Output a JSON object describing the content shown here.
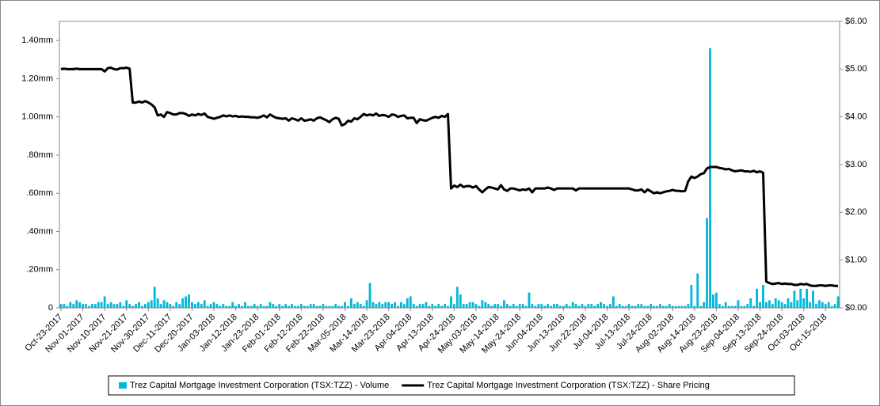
{
  "chart_data": {
    "type": "combo",
    "categories": [
      "Oct-23-2017",
      null,
      null,
      null,
      null,
      null,
      null,
      "Nov-01-2017",
      null,
      null,
      null,
      null,
      null,
      null,
      "Nov-10-2017",
      null,
      null,
      null,
      null,
      null,
      null,
      "Nov-21-2017",
      null,
      null,
      null,
      null,
      null,
      null,
      "Nov-30-2017",
      null,
      null,
      null,
      null,
      null,
      null,
      "Dec-11-2017",
      null,
      null,
      null,
      null,
      null,
      null,
      "Dec-20-2017",
      null,
      null,
      null,
      null,
      null,
      null,
      "Jan-03-2018",
      null,
      null,
      null,
      null,
      null,
      null,
      "Jan-12-2018",
      null,
      null,
      null,
      null,
      null,
      null,
      "Jan-23-2018",
      null,
      null,
      null,
      null,
      null,
      null,
      "Feb-01-2018",
      null,
      null,
      null,
      null,
      null,
      null,
      "Feb-12-2018",
      null,
      null,
      null,
      null,
      null,
      null,
      "Feb-22-2018",
      null,
      null,
      null,
      null,
      null,
      null,
      "Mar-05-2018",
      null,
      null,
      null,
      null,
      null,
      null,
      "Mar-14-2018",
      null,
      null,
      null,
      null,
      null,
      null,
      "Mar-23-2018",
      null,
      null,
      null,
      null,
      null,
      null,
      "Apr-04-2018",
      null,
      null,
      null,
      null,
      null,
      null,
      "Apr-13-2018",
      null,
      null,
      null,
      null,
      null,
      null,
      "Apr-24-2018",
      null,
      null,
      null,
      null,
      null,
      null,
      "May-03-2018",
      null,
      null,
      null,
      null,
      null,
      null,
      "May-14-2018",
      null,
      null,
      null,
      null,
      null,
      null,
      "May-24-2018",
      null,
      null,
      null,
      null,
      null,
      null,
      "Jun-04-2018",
      null,
      null,
      null,
      null,
      null,
      null,
      "Jun-13-2018",
      null,
      null,
      null,
      null,
      null,
      null,
      "Jun-22-2018",
      null,
      null,
      null,
      null,
      null,
      null,
      "Jul-04-2018",
      null,
      null,
      null,
      null,
      null,
      null,
      "Jul-13-2018",
      null,
      null,
      null,
      null,
      null,
      null,
      "Jul-24-2018",
      null,
      null,
      null,
      null,
      null,
      null,
      "Aug-02-2018",
      null,
      null,
      null,
      null,
      null,
      null,
      "Aug-14-2018",
      null,
      null,
      null,
      null,
      null,
      null,
      "Aug-23-2018",
      null,
      null,
      null,
      null,
      null,
      null,
      "Sep-04-2018",
      null,
      null,
      null,
      null,
      null,
      null,
      "Sep-13-2018",
      null,
      null,
      null,
      null,
      null,
      null,
      "Sep-24-2018",
      null,
      null,
      null,
      null,
      null,
      null,
      "Oct-03-2018",
      null,
      null,
      null,
      null,
      null,
      null,
      "Oct-15-2018",
      null,
      null,
      null,
      null
    ],
    "series": [
      {
        "name": "Trez Capital Mortgage Investment Corporation (TSX:TZZ) - Volume",
        "type": "bar",
        "color": "#00b8d9",
        "values": [
          0.02,
          0.02,
          0.01,
          0.03,
          0.02,
          0.04,
          0.03,
          0.02,
          0.02,
          0.01,
          0.02,
          0.02,
          0.03,
          0.03,
          0.06,
          0.02,
          0.03,
          0.02,
          0.02,
          0.03,
          0.01,
          0.04,
          0.02,
          0.01,
          0.02,
          0.03,
          0.01,
          0.02,
          0.03,
          0.04,
          0.11,
          0.05,
          0.02,
          0.04,
          0.03,
          0.02,
          0.01,
          0.03,
          0.02,
          0.05,
          0.06,
          0.07,
          0.03,
          0.02,
          0.03,
          0.02,
          0.04,
          0.01,
          0.02,
          0.03,
          0.02,
          0.01,
          0.02,
          0.01,
          0.01,
          0.03,
          0.01,
          0.02,
          0.01,
          0.03,
          0.01,
          0.01,
          0.02,
          0.01,
          0.02,
          0.01,
          0.01,
          0.03,
          0.02,
          0.01,
          0.02,
          0.01,
          0.02,
          0.01,
          0.02,
          0.01,
          0.01,
          0.02,
          0.01,
          0.01,
          0.02,
          0.02,
          0.01,
          0.01,
          0.02,
          0.01,
          0.01,
          0.01,
          0.02,
          0.01,
          0.01,
          0.03,
          0.01,
          0.05,
          0.02,
          0.03,
          0.02,
          0.01,
          0.04,
          0.13,
          0.03,
          0.02,
          0.03,
          0.02,
          0.03,
          0.03,
          0.02,
          0.03,
          0.01,
          0.03,
          0.02,
          0.05,
          0.06,
          0.02,
          0.01,
          0.02,
          0.02,
          0.03,
          0.01,
          0.02,
          0.01,
          0.02,
          0.01,
          0.02,
          0.01,
          0.06,
          0.02,
          0.11,
          0.07,
          0.02,
          0.02,
          0.03,
          0.03,
          0.02,
          0.01,
          0.04,
          0.03,
          0.02,
          0.01,
          0.02,
          0.02,
          0.01,
          0.04,
          0.02,
          0.01,
          0.02,
          0.01,
          0.02,
          0.02,
          0.01,
          0.08,
          0.02,
          0.01,
          0.02,
          0.02,
          0.01,
          0.02,
          0.01,
          0.02,
          0.02,
          0.01,
          0.01,
          0.02,
          0.01,
          0.03,
          0.02,
          0.01,
          0.02,
          0.01,
          0.02,
          0.02,
          0.01,
          0.02,
          0.03,
          0.02,
          0.01,
          0.02,
          0.06,
          0.01,
          0.02,
          0.01,
          0.01,
          0.02,
          0.01,
          0.01,
          0.02,
          0.02,
          0.01,
          0.01,
          0.02,
          0.01,
          0.01,
          0.02,
          0.01,
          0.01,
          0.02,
          0.01,
          0.01,
          0.01,
          0.01,
          0.01,
          0.02,
          0.12,
          0.01,
          0.18,
          0.01,
          0.03,
          0.47,
          1.36,
          0.07,
          0.08,
          0.02,
          0.01,
          0.03,
          0.01,
          0.01,
          0.01,
          0.04,
          0.01,
          0.01,
          0.02,
          0.05,
          0.01,
          0.1,
          0.03,
          0.12,
          0.03,
          0.04,
          0.02,
          0.05,
          0.04,
          0.03,
          0.02,
          0.05,
          0.03,
          0.09,
          0.04,
          0.1,
          0.05,
          0.1,
          0.03,
          0.09,
          0.02,
          0.04,
          0.03,
          0.02,
          0.03,
          0.01,
          0.02,
          0.06
        ]
      },
      {
        "name": "Trez Capital Mortgage Investment Corporation (TSX:TZZ) - Share Pricing",
        "type": "line",
        "axis": "y2",
        "color": "#000000",
        "values": [
          5.0,
          5.01,
          5.0,
          5.0,
          5.0,
          5.01,
          5.0,
          5.0,
          5.0,
          5.0,
          5.0,
          5.0,
          5.0,
          5.0,
          4.95,
          5.02,
          5.03,
          5.0,
          4.99,
          5.02,
          5.02,
          5.03,
          5.01,
          4.3,
          4.3,
          4.32,
          4.3,
          4.33,
          4.3,
          4.26,
          4.2,
          4.03,
          4.05,
          4.0,
          4.1,
          4.08,
          4.05,
          4.05,
          4.08,
          4.08,
          4.06,
          4.02,
          4.05,
          4.03,
          4.06,
          4.04,
          4.07,
          4.0,
          3.98,
          3.96,
          3.98,
          4.0,
          4.03,
          4.01,
          4.03,
          4.01,
          4.02,
          4.0,
          4.01,
          4.0,
          4.0,
          3.99,
          3.99,
          3.98,
          4.0,
          4.03,
          3.99,
          4.05,
          4.01,
          3.98,
          3.97,
          3.96,
          3.97,
          3.92,
          3.97,
          3.95,
          3.92,
          3.97,
          3.92,
          3.93,
          3.95,
          3.92,
          3.97,
          3.99,
          3.96,
          3.93,
          3.89,
          3.95,
          3.98,
          3.96,
          3.82,
          3.85,
          3.92,
          3.9,
          3.97,
          3.95,
          4.0,
          4.06,
          4.03,
          4.05,
          4.03,
          4.07,
          4.02,
          4.04,
          4.03,
          4.0,
          4.05,
          4.04,
          4.0,
          4.02,
          4.03,
          3.97,
          3.98,
          3.98,
          3.87,
          3.95,
          3.93,
          3.92,
          3.95,
          3.98,
          4.0,
          3.98,
          4.02,
          4.0,
          4.06,
          2.5,
          2.56,
          2.53,
          2.58,
          2.53,
          2.55,
          2.55,
          2.52,
          2.55,
          2.48,
          2.42,
          2.48,
          2.53,
          2.52,
          2.5,
          2.48,
          2.57,
          2.48,
          2.45,
          2.5,
          2.5,
          2.48,
          2.46,
          2.48,
          2.47,
          2.5,
          2.42,
          2.5,
          2.5,
          2.5,
          2.5,
          2.52,
          2.5,
          2.47,
          2.5,
          2.5,
          2.5,
          2.5,
          2.5,
          2.5,
          2.46,
          2.5,
          2.5,
          2.5,
          2.5,
          2.5,
          2.5,
          2.5,
          2.5,
          2.5,
          2.5,
          2.5,
          2.5,
          2.5,
          2.5,
          2.5,
          2.5,
          2.5,
          2.48,
          2.46,
          2.46,
          2.48,
          2.42,
          2.48,
          2.44,
          2.4,
          2.42,
          2.4,
          2.42,
          2.44,
          2.45,
          2.47,
          2.45,
          2.45,
          2.44,
          2.45,
          2.65,
          2.75,
          2.72,
          2.75,
          2.8,
          2.82,
          2.92,
          2.95,
          2.95,
          2.95,
          2.93,
          2.92,
          2.9,
          2.91,
          2.88,
          2.86,
          2.87,
          2.88,
          2.86,
          2.86,
          2.85,
          2.87,
          2.84,
          2.86,
          2.83,
          0.55,
          0.52,
          0.5,
          0.51,
          0.52,
          0.5,
          0.51,
          0.5,
          0.5,
          0.48,
          0.48,
          0.5,
          0.49,
          0.5,
          0.47,
          0.46,
          0.46,
          0.47,
          0.47,
          0.46,
          0.47,
          0.47,
          0.46,
          0.46
        ]
      }
    ],
    "ylim": [
      0,
      1.5
    ],
    "yticks": [
      0,
      {
        "value": 0.2,
        "label": ".20mm"
      },
      {
        "value": 0.4,
        "label": ".40mm"
      },
      {
        "value": 0.6,
        "label": ".60mm"
      },
      {
        "value": 0.8,
        "label": ".80mm"
      },
      {
        "value": 1.0,
        "label": "1.00mm"
      },
      {
        "value": 1.2,
        "label": "1.20mm"
      },
      {
        "value": 1.4,
        "label": "1.40mm"
      }
    ],
    "y2lim": [
      0,
      6
    ],
    "y2ticks": [
      {
        "value": 0,
        "label": "$0.00"
      },
      {
        "value": 1,
        "label": "$1.00"
      },
      {
        "value": 2,
        "label": "$2.00"
      },
      {
        "value": 3,
        "label": "$3.00"
      },
      {
        "value": 4,
        "label": "$4.00"
      },
      {
        "value": 5,
        "label": "$5.00"
      },
      {
        "value": 6,
        "label": "$6.00"
      }
    ],
    "grid": false,
    "legend": "bottom"
  }
}
